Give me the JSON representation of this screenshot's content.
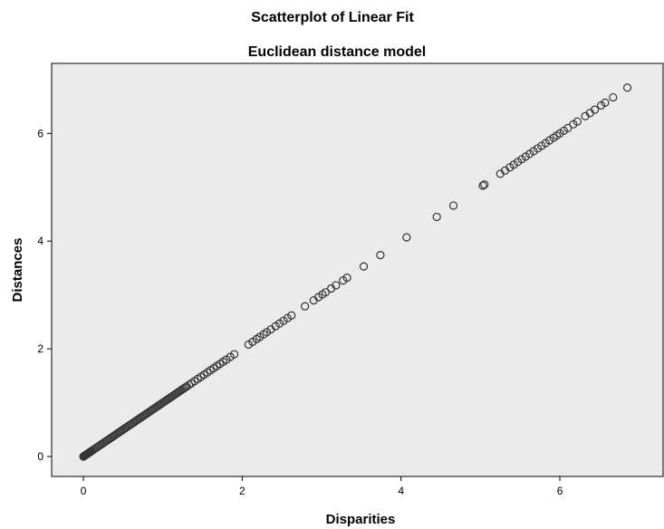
{
  "chart_data": {
    "type": "scatter",
    "title": "Scatterplot of Linear Fit",
    "subtitle": "Euclidean distance model",
    "xlabel": "Disparities",
    "ylabel": "Distances",
    "xlim": [
      -0.4,
      7.3
    ],
    "ylim": [
      -0.37,
      7.3
    ],
    "xticks": [
      0,
      2,
      4,
      6
    ],
    "yticks": [
      0,
      2,
      4,
      6
    ],
    "grid": false,
    "colors": {
      "plot_background": "#ebebeb",
      "marker_stroke": "#333333",
      "axis": "#000000"
    },
    "series": [
      {
        "x": [
          0.0,
          0.01,
          0.02,
          0.03,
          0.04,
          0.05,
          0.06,
          0.07,
          0.08,
          0.09,
          0.1,
          0.12,
          0.14,
          0.16,
          0.18,
          0.2,
          0.22,
          0.24,
          0.26,
          0.28,
          0.3,
          0.32,
          0.34,
          0.36,
          0.38,
          0.4,
          0.42,
          0.44,
          0.46,
          0.48,
          0.5,
          0.52,
          0.54,
          0.56,
          0.58,
          0.6,
          0.62,
          0.64,
          0.66,
          0.68,
          0.7,
          0.72,
          0.74,
          0.76,
          0.78,
          0.8,
          0.82,
          0.84,
          0.86,
          0.88,
          0.9,
          0.92,
          0.94,
          0.96,
          0.98,
          1.0,
          1.02,
          1.04,
          1.06,
          1.08,
          1.1,
          1.12,
          1.14,
          1.16,
          1.18,
          1.2,
          1.22,
          1.24,
          1.26,
          1.28,
          1.3,
          1.33,
          1.36,
          1.4,
          1.44,
          1.48,
          1.52,
          1.56,
          1.6,
          1.64,
          1.68,
          1.72,
          1.76,
          1.8,
          1.85,
          1.9,
          2.08,
          2.13,
          2.18,
          2.22,
          2.27,
          2.31,
          2.36,
          2.42,
          2.47,
          2.52,
          2.57,
          2.62,
          2.79,
          2.9,
          2.96,
          3.01,
          3.05,
          3.12,
          3.18,
          3.27,
          3.32,
          3.53,
          3.74,
          4.07,
          4.45,
          4.66,
          5.03,
          5.05,
          5.25,
          5.31,
          5.37,
          5.42,
          5.47,
          5.52,
          5.57,
          5.62,
          5.67,
          5.72,
          5.77,
          5.82,
          5.87,
          5.92,
          5.96,
          6.0,
          6.05,
          6.1,
          6.17,
          6.22,
          6.32,
          6.38,
          6.44,
          6.52,
          6.57,
          6.67,
          6.85
        ],
        "y": [
          0.0,
          0.01,
          0.02,
          0.03,
          0.04,
          0.05,
          0.06,
          0.07,
          0.08,
          0.09,
          0.1,
          0.12,
          0.14,
          0.16,
          0.18,
          0.2,
          0.22,
          0.24,
          0.26,
          0.28,
          0.3,
          0.32,
          0.34,
          0.36,
          0.38,
          0.4,
          0.42,
          0.44,
          0.46,
          0.48,
          0.5,
          0.52,
          0.54,
          0.56,
          0.58,
          0.6,
          0.62,
          0.64,
          0.66,
          0.68,
          0.7,
          0.72,
          0.74,
          0.76,
          0.78,
          0.8,
          0.82,
          0.84,
          0.86,
          0.88,
          0.9,
          0.92,
          0.94,
          0.96,
          0.98,
          1.0,
          1.02,
          1.04,
          1.06,
          1.08,
          1.1,
          1.12,
          1.14,
          1.16,
          1.18,
          1.2,
          1.22,
          1.24,
          1.26,
          1.28,
          1.3,
          1.33,
          1.36,
          1.4,
          1.44,
          1.48,
          1.52,
          1.56,
          1.6,
          1.64,
          1.68,
          1.72,
          1.76,
          1.8,
          1.85,
          1.9,
          2.08,
          2.13,
          2.18,
          2.22,
          2.27,
          2.31,
          2.36,
          2.42,
          2.47,
          2.52,
          2.57,
          2.62,
          2.79,
          2.9,
          2.96,
          3.01,
          3.05,
          3.12,
          3.18,
          3.27,
          3.32,
          3.53,
          3.74,
          4.07,
          4.45,
          4.66,
          5.03,
          5.05,
          5.25,
          5.31,
          5.37,
          5.42,
          5.47,
          5.52,
          5.57,
          5.62,
          5.67,
          5.72,
          5.77,
          5.82,
          5.87,
          5.92,
          5.96,
          6.0,
          6.05,
          6.1,
          6.17,
          6.22,
          6.32,
          6.38,
          6.44,
          6.52,
          6.57,
          6.67,
          6.85
        ]
      }
    ]
  }
}
